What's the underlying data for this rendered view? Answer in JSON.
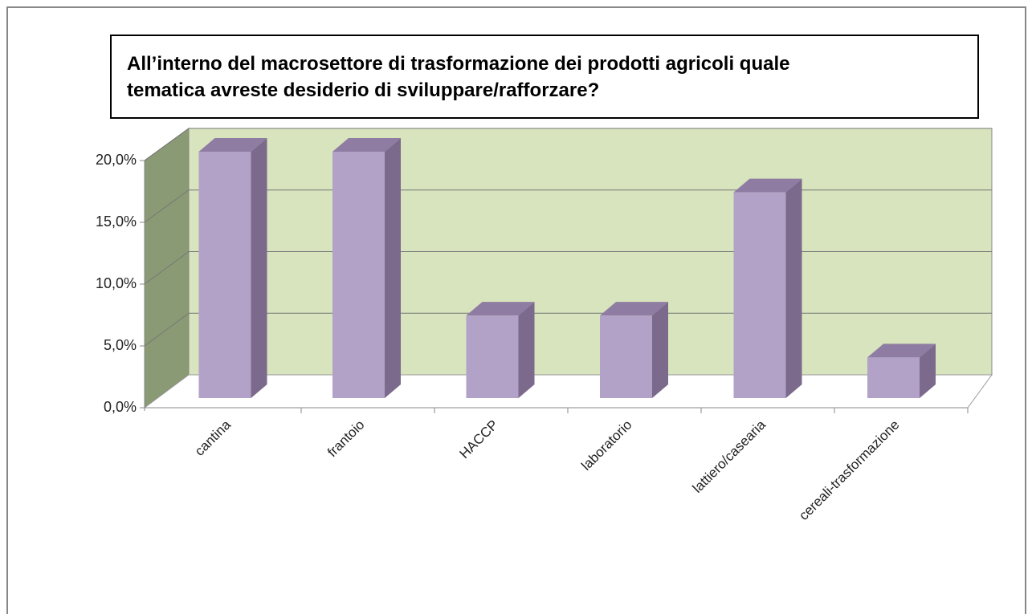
{
  "chart_data": {
    "type": "bar3d",
    "title": "All’interno del macrosettore di trasformazione dei prodotti agricoli quale tematica avreste desiderio di sviluppare/rafforzare?",
    "categories": [
      "cantina",
      "frantoio",
      "HACCP",
      "laboratorio",
      "lattiero/casearia",
      "cereali-trasformazione"
    ],
    "values": [
      20.0,
      20.0,
      6.7,
      6.7,
      16.7,
      3.3
    ],
    "color": "#b3a2c7",
    "ylim": [
      0,
      20
    ],
    "yticks": [
      {
        "value": 0,
        "label": "0,0%"
      },
      {
        "value": 5,
        "label": "5,0%"
      },
      {
        "value": 10,
        "label": "10,0%"
      },
      {
        "value": 15,
        "label": "15,0%"
      },
      {
        "value": 20,
        "label": "20,0%"
      }
    ],
    "grid": true
  }
}
